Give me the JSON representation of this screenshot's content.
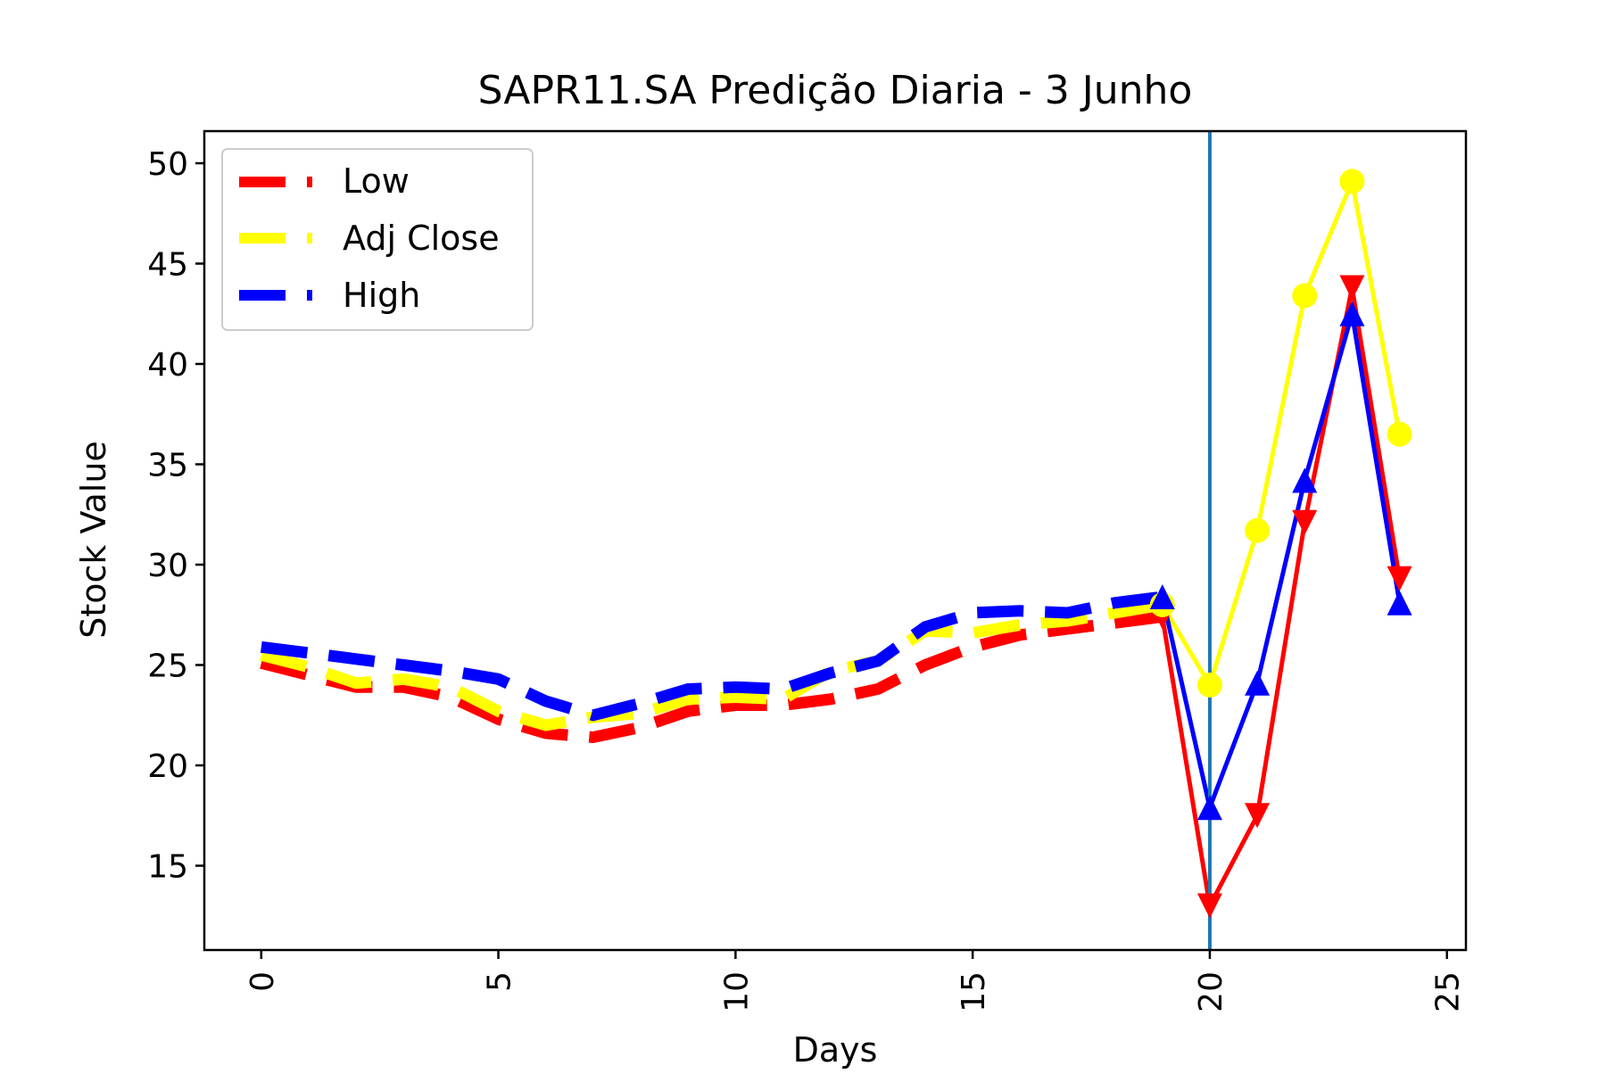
{
  "chart_data": {
    "type": "line",
    "title": "SAPR11.SA Predição Diaria - 3 Junho",
    "xlabel": "Days",
    "ylabel": "Stock Value",
    "xlim": [
      -1.2,
      25.4
    ],
    "ylim": [
      10.8,
      51.6
    ],
    "xticks": [
      "0",
      "5",
      "10",
      "15",
      "20",
      "25"
    ],
    "yticks": [
      "15",
      "20",
      "25",
      "30",
      "35",
      "40",
      "45",
      "50"
    ],
    "grid": false,
    "legend_position": "upper left",
    "vertical_line": {
      "x": 20,
      "color": "#1f77b4"
    },
    "series": [
      {
        "name": "Low",
        "color": "#ff0000",
        "history_x": [
          0,
          1,
          2,
          3,
          4,
          5,
          6,
          7,
          8,
          9,
          10,
          11,
          12,
          13,
          14,
          15,
          16,
          17,
          18,
          19
        ],
        "history_y": [
          25.1,
          24.5,
          23.9,
          23.9,
          23.4,
          22.3,
          21.6,
          21.4,
          21.9,
          22.7,
          23.0,
          23.0,
          23.3,
          23.8,
          25.0,
          25.9,
          26.5,
          26.8,
          27.1,
          27.4
        ],
        "prediction_x": [
          19,
          20,
          21,
          22,
          23,
          24
        ],
        "prediction_y": [
          27.4,
          13.0,
          17.5,
          32.1,
          43.8,
          29.3
        ],
        "marker": "triangle-down"
      },
      {
        "name": "Adj Close",
        "color": "#ffff00",
        "history_x": [
          0,
          1,
          2,
          3,
          4,
          5,
          6,
          7,
          8,
          9,
          10,
          11,
          12,
          13,
          14,
          15,
          16,
          17,
          18,
          19
        ],
        "history_y": [
          25.5,
          24.9,
          24.1,
          24.3,
          23.9,
          22.7,
          22.0,
          22.4,
          22.6,
          23.3,
          23.4,
          23.3,
          24.7,
          25.2,
          26.7,
          26.6,
          27.0,
          27.2,
          27.6,
          28.0
        ],
        "prediction_x": [
          19,
          20,
          21,
          22,
          23,
          24
        ],
        "prediction_y": [
          28.0,
          24.0,
          31.7,
          43.4,
          49.1,
          36.5
        ],
        "marker": "circle"
      },
      {
        "name": "High",
        "color": "#0000ff",
        "history_x": [
          0,
          1,
          2,
          3,
          4,
          5,
          6,
          7,
          8,
          9,
          10,
          11,
          12,
          13,
          14,
          15,
          16,
          17,
          18,
          19
        ],
        "history_y": [
          25.9,
          25.6,
          25.3,
          25.0,
          24.7,
          24.3,
          23.2,
          22.5,
          23.1,
          23.8,
          23.9,
          23.8,
          24.6,
          25.2,
          26.9,
          27.6,
          27.7,
          27.6,
          28.1,
          28.4
        ],
        "prediction_x": [
          19,
          20,
          21,
          22,
          23,
          24
        ],
        "prediction_y": [
          28.4,
          17.9,
          24.1,
          34.2,
          42.5,
          28.1
        ],
        "marker": "triangle-up"
      }
    ]
  }
}
